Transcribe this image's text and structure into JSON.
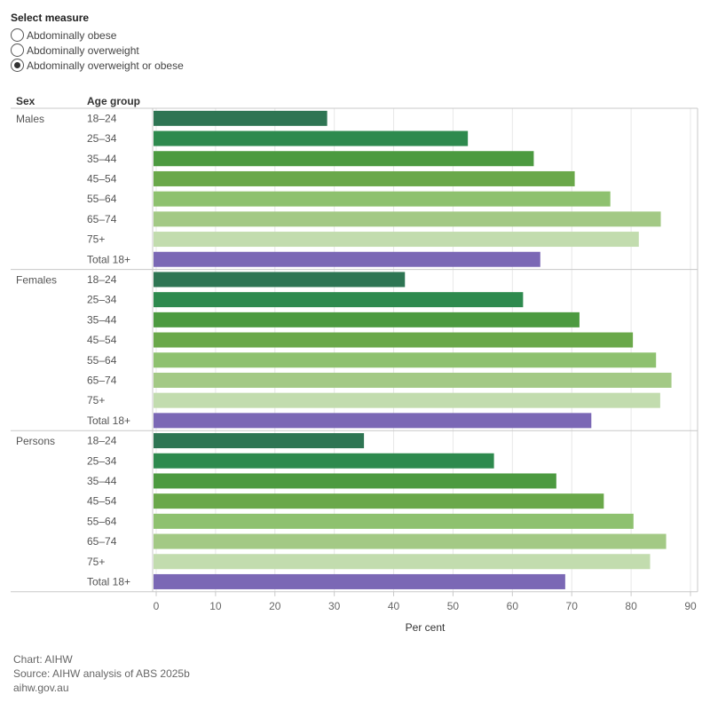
{
  "selector": {
    "title": "Select measure",
    "options": [
      {
        "label": "Abdominally obese",
        "checked": false
      },
      {
        "label": "Abdominally overweight",
        "checked": false
      },
      {
        "label": "Abdominally overweight or obese",
        "checked": true
      }
    ]
  },
  "chart_data": {
    "type": "bar",
    "orientation": "horizontal",
    "header_sex": "Sex",
    "header_age": "Age group",
    "xlabel": "Per cent",
    "xlim": [
      0,
      90
    ],
    "xticks": [
      0,
      10,
      20,
      30,
      40,
      50,
      60,
      70,
      80,
      90
    ],
    "grid": true,
    "categories": [
      "18–24",
      "25–34",
      "35–44",
      "45–54",
      "55–64",
      "65–74",
      "75+",
      "Total 18+"
    ],
    "colors": [
      "#2e7553",
      "#2e8a4e",
      "#4c9a40",
      "#6aa84a",
      "#8ec16f",
      "#a3c985",
      "#c2dcae",
      "#7b68b5"
    ],
    "groups": [
      {
        "name": "Males",
        "values": [
          28.8,
          52.5,
          63.6,
          70.5,
          76.5,
          85.0,
          81.3,
          64.7
        ]
      },
      {
        "name": "Females",
        "values": [
          41.9,
          61.8,
          71.3,
          80.3,
          84.2,
          86.8,
          84.9,
          73.3
        ]
      },
      {
        "name": "Persons",
        "values": [
          35.0,
          56.9,
          67.4,
          75.4,
          80.4,
          85.9,
          83.2,
          68.9
        ]
      }
    ]
  },
  "footer": {
    "chart_credit": "Chart: AIHW",
    "source": "Source: AIHW analysis of ABS 2025b",
    "website": "aihw.gov.au"
  }
}
